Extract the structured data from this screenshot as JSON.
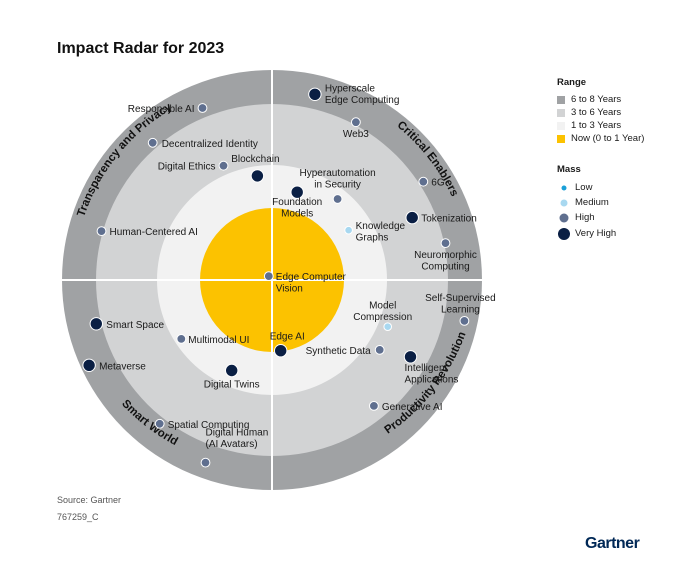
{
  "title": "Impact Radar for 2023",
  "source": "Source: Gartner",
  "doc_id": "767259_C",
  "brand": "Gartner",
  "colors": {
    "ring_outer": "#a0a2a4",
    "ring_mid": "#d2d3d4",
    "ring_inner": "#f2f2f2",
    "core": "#fcc200",
    "mass_low": "#1aa0d8",
    "mass_medium": "#a8d8f0",
    "mass_high": "#5f6f8f",
    "mass_very_high": "#0a1f44"
  },
  "legend": {
    "range_title": "Range",
    "range_items": [
      {
        "label": "6 to 8 Years",
        "color": "#a0a2a4"
      },
      {
        "label": "3 to 6 Years",
        "color": "#d2d3d4"
      },
      {
        "label": "1 to 3 Years",
        "color": "#f2f2f2"
      },
      {
        "label": "Now (0 to 1 Year)",
        "color": "#fcc200"
      }
    ],
    "mass_title": "Mass",
    "mass_items": [
      {
        "label": "Low",
        "color": "#1aa0d8",
        "mass": "low"
      },
      {
        "label": "Medium",
        "color": "#a8d8f0",
        "mass": "medium"
      },
      {
        "label": "High",
        "color": "#5f6f8f",
        "mass": "high"
      },
      {
        "label": "Very High",
        "color": "#0a1f44",
        "mass": "very_high"
      }
    ]
  },
  "chart_data": {
    "type": "radar",
    "title": "Impact Radar for 2023",
    "rings": [
      "Now (0 to 1 Year)",
      "1 to 3 Years",
      "3 to 6 Years",
      "6 to 8 Years"
    ],
    "themes": [
      {
        "name": "Critical Enablers",
        "quadrant": "top-right"
      },
      {
        "name": "Productivity Revolution",
        "quadrant": "bottom-right"
      },
      {
        "name": "Smart World",
        "quadrant": "bottom-left"
      },
      {
        "name": "Transparency and Privacy",
        "quadrant": "top-left"
      }
    ],
    "technologies": [
      {
        "name": "Responsible AI",
        "theme": "Transparency and Privacy",
        "range": "3 to 6 Years",
        "mass": "high",
        "angle": 112,
        "dist": 3.28
      },
      {
        "name": "Decentralized Identity",
        "theme": "Transparency and Privacy",
        "range": "3 to 6 Years",
        "mass": "high",
        "angle": 131,
        "dist": 3.17
      },
      {
        "name": "Digital Ethics",
        "theme": "Transparency and Privacy",
        "range": "1 to 3 Years",
        "mass": "high",
        "angle": 113,
        "dist": 2.15
      },
      {
        "name": "Human-Centered AI",
        "theme": "Transparency and Privacy",
        "range": "3 to 6 Years",
        "mass": "high",
        "angle": 164,
        "dist": 3.04
      },
      {
        "name": "Blockchain",
        "theme": "Transparency and Privacy",
        "range": "1 to 3 Years",
        "mass": "very_high",
        "angle": 98,
        "dist": 1.77
      },
      {
        "name": "Hyperscale Edge Computing",
        "theme": "Critical Enablers",
        "range": "3 to 6 Years",
        "mass": "very_high",
        "angle": 77,
        "dist": 3.43
      },
      {
        "name": "Web3",
        "theme": "Critical Enablers",
        "range": "3 to 6 Years",
        "mass": "high",
        "angle": 62,
        "dist": 3.08
      },
      {
        "name": "6G",
        "theme": "Critical Enablers",
        "range": "3 to 6 Years",
        "mass": "high",
        "angle": 33,
        "dist": 3.13
      },
      {
        "name": "Tokenization",
        "theme": "Critical Enablers",
        "range": "3 to 6 Years",
        "mass": "very_high",
        "angle": 24,
        "dist": 2.63
      },
      {
        "name": "Neuromorphic Computing",
        "theme": "Critical Enablers",
        "range": "3 to 6 Years",
        "mass": "high",
        "angle": 12,
        "dist": 3.04
      },
      {
        "name": "Hyperautomation in Security",
        "theme": "Critical Enablers",
        "range": "1 to 3 Years",
        "mass": "high",
        "angle": 51,
        "dist": 1.75
      },
      {
        "name": "Foundation Models",
        "theme": "Critical Enablers",
        "range": "1 to 3 Years",
        "mass": "very_high",
        "angle": 74,
        "dist": 1.45
      },
      {
        "name": "Knowledge Graphs",
        "theme": "Critical Enablers",
        "range": "1 to 3 Years",
        "mass": "medium",
        "angle": 33,
        "dist": 1.45
      },
      {
        "name": "Edge Computer Vision",
        "theme": "Critical Enablers",
        "range": "Now (0 to 1 Year)",
        "mass": "high",
        "angle": 130,
        "dist": 0.07
      },
      {
        "name": "Self-Supervised Learning",
        "theme": "Productivity Revolution",
        "range": "6 to 8 Years",
        "mass": "high",
        "angle": -12,
        "dist": 3.61
      },
      {
        "name": "Model Compression",
        "theme": "Productivity Revolution",
        "range": "1 to 3 Years",
        "mass": "medium",
        "angle": -22,
        "dist": 2.16
      },
      {
        "name": "Intelligent Applications",
        "theme": "Productivity Revolution",
        "range": "3 to 6 Years",
        "mass": "very_high",
        "angle": -29,
        "dist": 2.71
      },
      {
        "name": "Synthetic Data",
        "theme": "Productivity Revolution",
        "range": "3 to 6 Years",
        "mass": "high",
        "angle": -33,
        "dist": 2.22
      },
      {
        "name": "Generative AI",
        "theme": "Productivity Revolution",
        "range": "3 to 6 Years",
        "mass": "high",
        "angle": -51,
        "dist": 2.77
      },
      {
        "name": "Edge AI",
        "theme": "Productivity Revolution",
        "range": "Now (0 to 1 Year)",
        "mass": "very_high",
        "angle": -83,
        "dist": 0.99
      },
      {
        "name": "Smart Space",
        "theme": "Smart World",
        "range": "3 to 6 Years",
        "mass": "very_high",
        "angle": 194,
        "dist": 3.15
      },
      {
        "name": "Metaverse",
        "theme": "Smart World",
        "range": "6 to 8 Years",
        "mass": "very_high",
        "angle": 205,
        "dist": 3.76
      },
      {
        "name": "Multimodal UI",
        "theme": "Smart World",
        "range": "1 to 3 Years",
        "mass": "high",
        "angle": 213,
        "dist": 1.84
      },
      {
        "name": "Digital Twins",
        "theme": "Smart World",
        "range": "1 to 3 Years",
        "mass": "very_high",
        "angle": 246,
        "dist": 1.63
      },
      {
        "name": "Spatial Computing",
        "theme": "Smart World",
        "range": "3 to 6 Years",
        "mass": "high",
        "angle": 232,
        "dist": 3.19
      },
      {
        "name": "Digital Human (AI Avatars)",
        "theme": "Smart World",
        "range": "3 to 6 Years",
        "mass": "high",
        "angle": 250,
        "dist": 3.54
      }
    ]
  }
}
